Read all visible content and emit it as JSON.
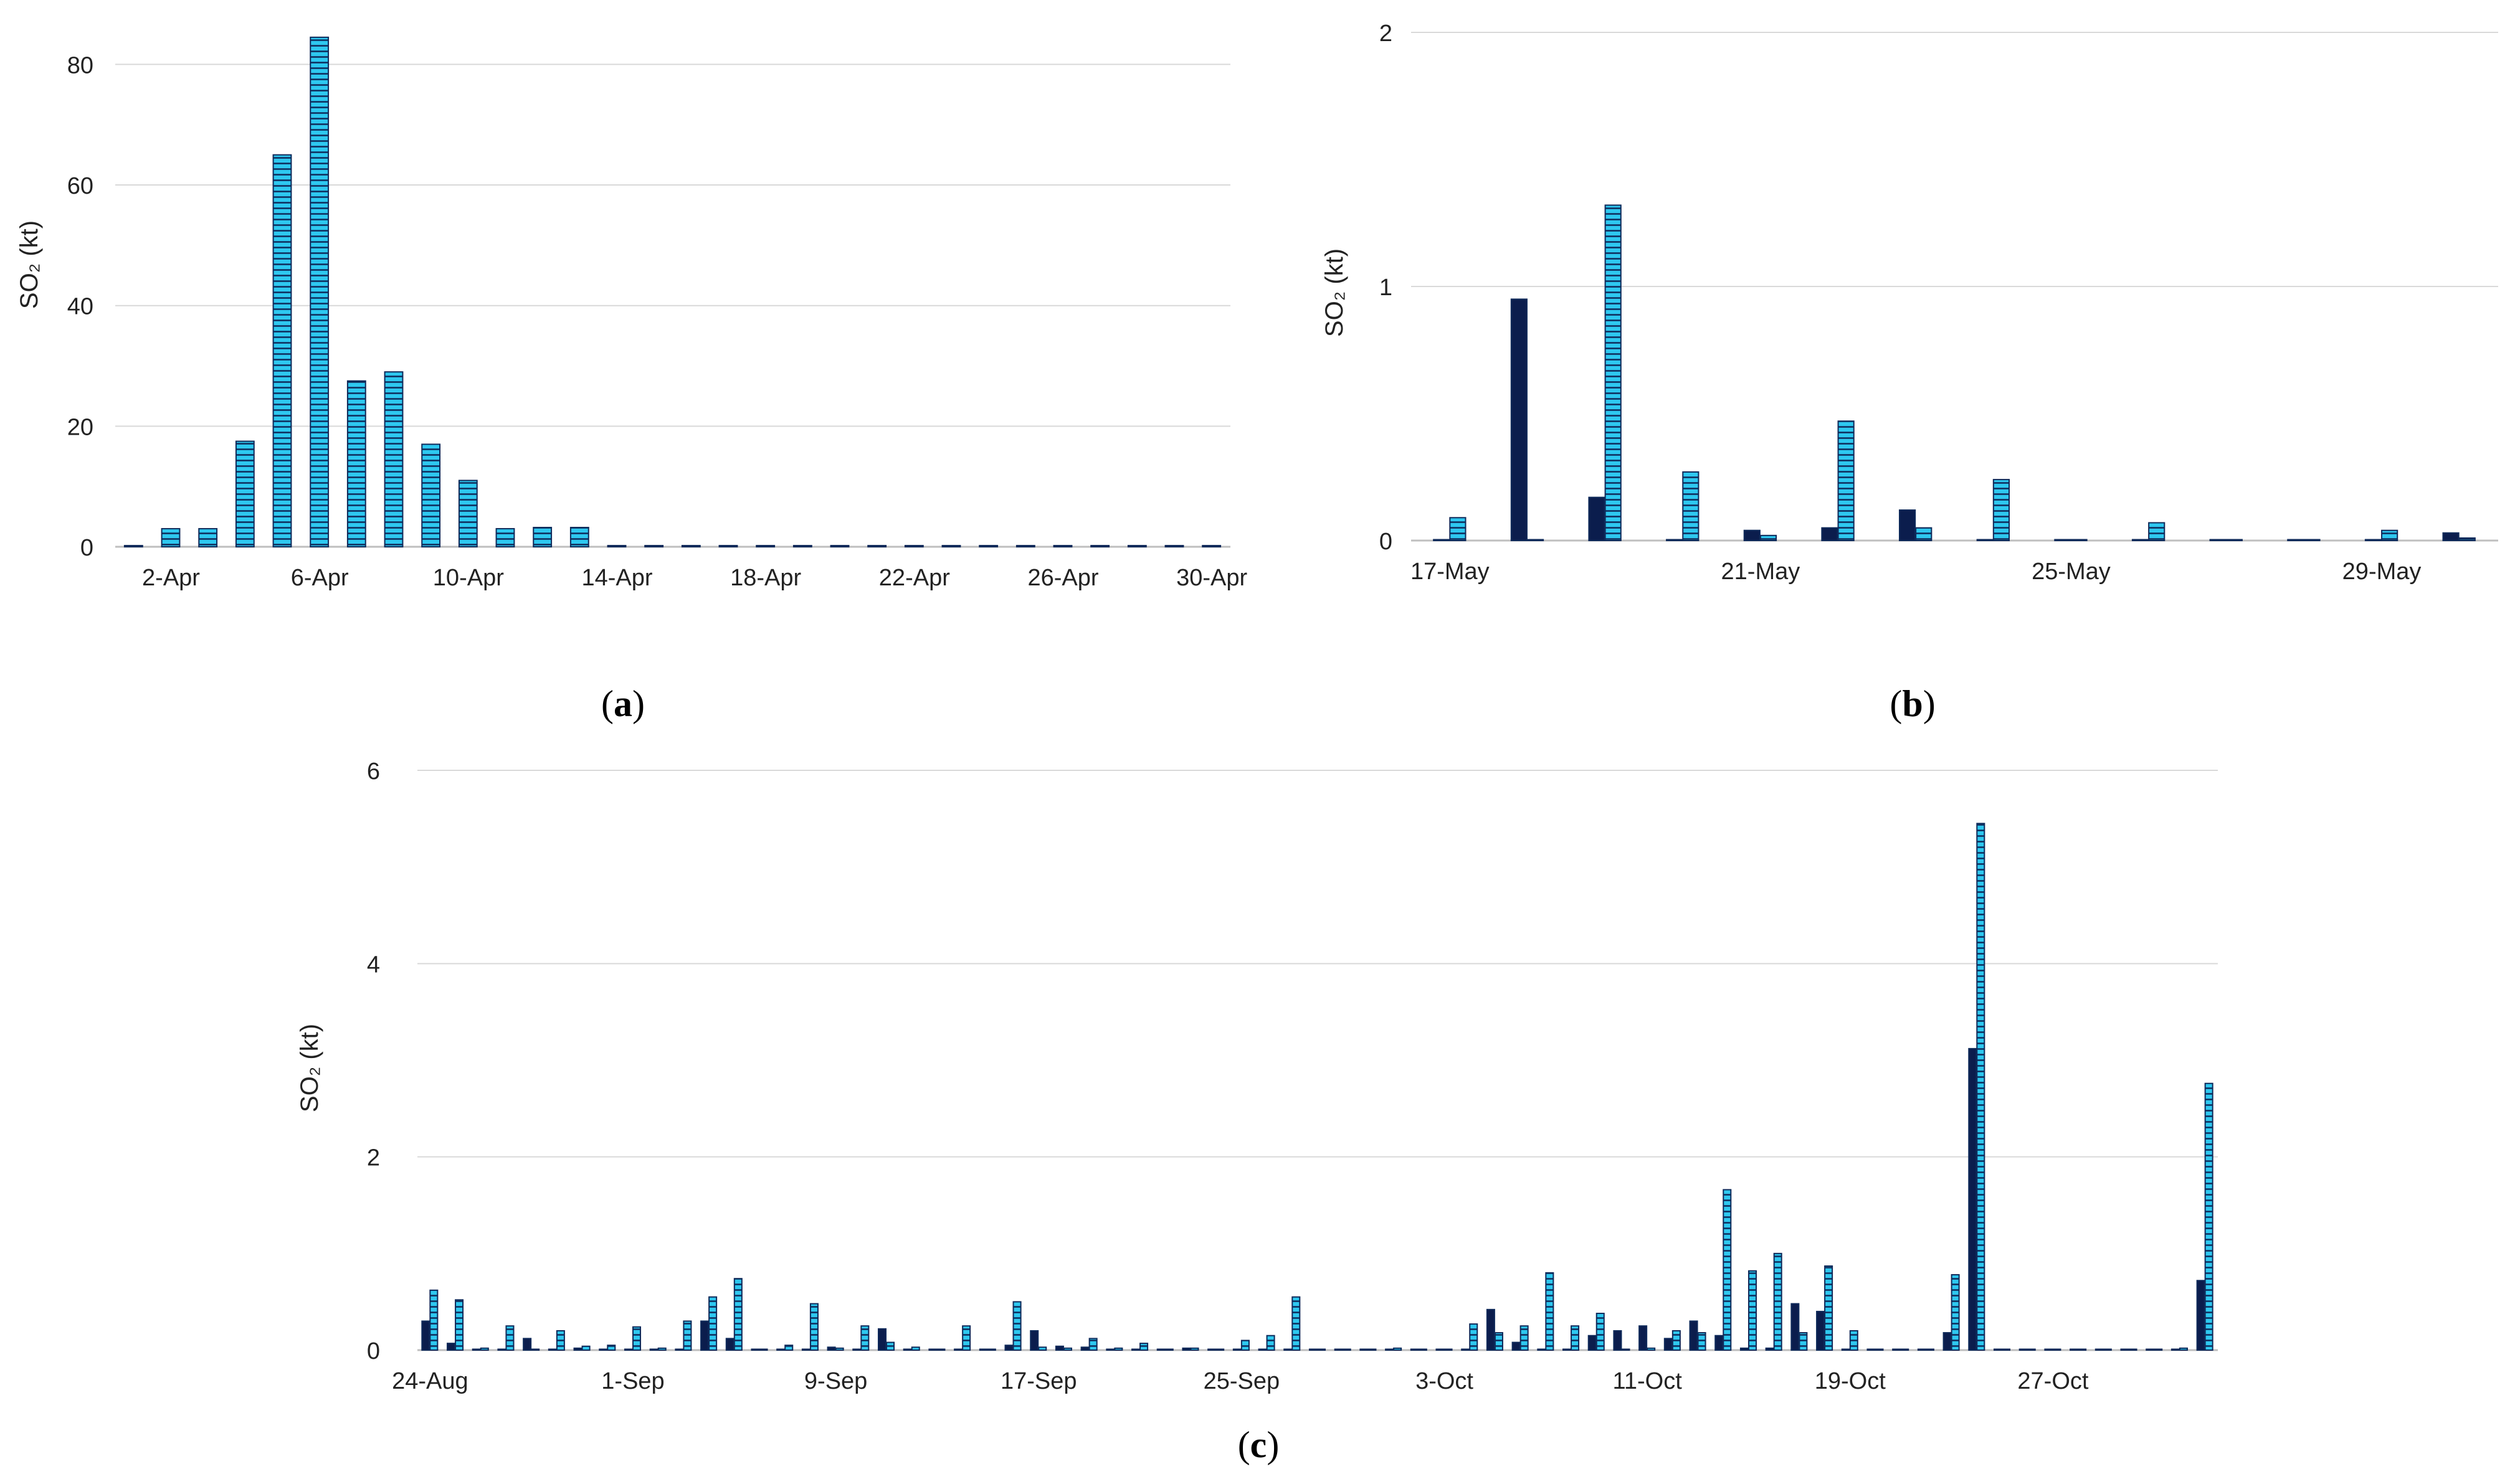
{
  "colors": {
    "hatched_fill": "#2ec8f0",
    "hatch_line": "#0f2a5a",
    "solid_fill": "#0b1d4d",
    "grid": "#d9d9d9"
  },
  "chart_data": [
    {
      "panel": "(a)",
      "panel_letter": "a",
      "type": "bar",
      "ylabel": "SO₂ (kt)",
      "ylim": [
        0,
        85
      ],
      "yticks": [
        "0",
        "20",
        "40",
        "60",
        "80"
      ],
      "grid": true,
      "categories": [
        "1-Apr",
        "2-Apr",
        "3-Apr",
        "4-Apr",
        "5-Apr",
        "6-Apr",
        "7-Apr",
        "8-Apr",
        "9-Apr",
        "10-Apr",
        "11-Apr",
        "12-Apr",
        "13-Apr",
        "14-Apr",
        "15-Apr",
        "16-Apr",
        "17-Apr",
        "18-Apr",
        "19-Apr",
        "20-Apr",
        "21-Apr",
        "22-Apr",
        "23-Apr",
        "24-Apr",
        "25-Apr",
        "26-Apr",
        "27-Apr",
        "28-Apr",
        "29-Apr",
        "30-Apr"
      ],
      "xtick_labels": [
        "2-Apr",
        "6-Apr",
        "10-Apr",
        "14-Apr",
        "18-Apr",
        "22-Apr",
        "26-Apr",
        "30-Apr"
      ],
      "series": [
        {
          "style": "hatched",
          "values": [
            0.2,
            3,
            3,
            17.5,
            65,
            84.5,
            27.5,
            29,
            17,
            11,
            3,
            3.2,
            3.2,
            0.2,
            0.2,
            0.2,
            0.2,
            0.2,
            0.2,
            0.2,
            0.2,
            0.2,
            0.2,
            0.2,
            0.2,
            0.2,
            0.2,
            0.2,
            0.2,
            0.2
          ]
        }
      ]
    },
    {
      "panel": "(b)",
      "panel_letter": "b",
      "type": "bar",
      "ylabel": "SO₂ (kt)",
      "ylim": [
        0,
        2
      ],
      "yticks": [
        "0",
        "1",
        "2"
      ],
      "grid": true,
      "categories": [
        "17-May",
        "18-May",
        "19-May",
        "20-May",
        "21-May",
        "22-May",
        "23-May",
        "24-May",
        "25-May",
        "26-May",
        "27-May",
        "28-May",
        "29-May",
        "30-May"
      ],
      "xtick_labels": [
        "17-May",
        "21-May",
        "25-May",
        "29-May"
      ],
      "series": [
        {
          "style": "solid",
          "values": [
            0,
            0.95,
            0.17,
            0,
            0.04,
            0.05,
            0.12,
            0,
            0,
            0,
            0,
            0,
            0,
            0.03
          ]
        },
        {
          "style": "hatched",
          "values": [
            0.09,
            0,
            1.32,
            0.27,
            0.02,
            0.47,
            0.05,
            0.24,
            0,
            0.07,
            0,
            0,
            0.04,
            0.01
          ]
        }
      ]
    },
    {
      "panel": "(c)",
      "panel_letter": "c",
      "type": "bar",
      "ylabel": "SO₂ (kt)",
      "ylim": [
        0,
        6
      ],
      "yticks": [
        "0",
        "2",
        "4",
        "6"
      ],
      "grid": true,
      "categories": [
        "24-Aug",
        "25-Aug",
        "26-Aug",
        "27-Aug",
        "28-Aug",
        "29-Aug",
        "30-Aug",
        "31-Aug",
        "1-Sep",
        "2-Sep",
        "3-Sep",
        "4-Sep",
        "5-Sep",
        "6-Sep",
        "7-Sep",
        "8-Sep",
        "9-Sep",
        "10-Sep",
        "11-Sep",
        "12-Sep",
        "13-Sep",
        "14-Sep",
        "15-Sep",
        "16-Sep",
        "17-Sep",
        "18-Sep",
        "19-Sep",
        "20-Sep",
        "21-Sep",
        "22-Sep",
        "23-Sep",
        "24-Sep",
        "25-Sep",
        "26-Sep",
        "27-Sep",
        "28-Sep",
        "29-Sep",
        "30-Sep",
        "1-Oct",
        "2-Oct",
        "3-Oct",
        "4-Oct",
        "5-Oct",
        "6-Oct",
        "7-Oct",
        "8-Oct",
        "9-Oct",
        "10-Oct",
        "11-Oct",
        "12-Oct",
        "13-Oct",
        "14-Oct",
        "15-Oct",
        "16-Oct",
        "17-Oct",
        "18-Oct",
        "19-Oct",
        "20-Oct",
        "21-Oct",
        "22-Oct",
        "23-Oct",
        "24-Oct",
        "25-Oct",
        "26-Oct",
        "27-Oct",
        "28-Oct",
        "29-Oct",
        "30-Oct",
        "31-Oct",
        "1-Nov",
        "2-Nov"
      ],
      "xtick_labels": [
        "24-Aug",
        "1-Sep",
        "9-Sep",
        "17-Sep",
        "25-Sep",
        "3-Oct",
        "11-Oct",
        "19-Oct",
        "27-Oct"
      ],
      "series": [
        {
          "style": "solid",
          "values": [
            0.3,
            0.07,
            0,
            0,
            0.12,
            0,
            0.02,
            0,
            0,
            0,
            0,
            0.3,
            0.12,
            0,
            0,
            0,
            0.03,
            0,
            0.22,
            0,
            0,
            0,
            0,
            0.05,
            0.2,
            0.04,
            0.03,
            0,
            0,
            0,
            0.02,
            0,
            0,
            0,
            0,
            0,
            0,
            0,
            0,
            0,
            0,
            0,
            0.42,
            0.08,
            0,
            0,
            0.15,
            0.2,
            0.25,
            0.12,
            0.3,
            0.15,
            0.02,
            0.02,
            0.48,
            0.4,
            0,
            0,
            0,
            0,
            0.18,
            3.12,
            0,
            0,
            0,
            0,
            0,
            0,
            0,
            0,
            0.72
          ]
        },
        {
          "style": "hatched",
          "values": [
            0.62,
            0.52,
            0.02,
            0.25,
            0,
            0.2,
            0.04,
            0.05,
            0.24,
            0.02,
            0.3,
            0.55,
            0.74,
            0,
            0.05,
            0.48,
            0.02,
            0.25,
            0.08,
            0.03,
            0,
            0.25,
            0,
            0.5,
            0.03,
            0.02,
            0.12,
            0.02,
            0.07,
            0,
            0.02,
            0,
            0.1,
            0.15,
            0.55,
            0,
            0,
            0,
            0.02,
            0,
            0,
            0.27,
            0.18,
            0.25,
            0.8,
            0.25,
            0.38,
            0,
            0.02,
            0.2,
            0.18,
            1.66,
            0.82,
            1,
            0.18,
            0.87,
            0.2,
            0,
            0,
            0,
            0.78,
            5.45,
            0,
            0,
            0,
            0,
            0,
            0,
            0,
            0.02,
            2.76
          ]
        }
      ]
    }
  ]
}
